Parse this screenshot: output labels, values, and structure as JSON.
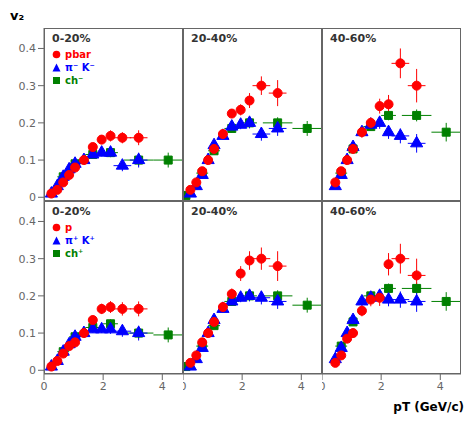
{
  "chart_data": [
    {
      "type": "scatter",
      "title": "0-20%",
      "xlim": [
        0,
        4.7
      ],
      "ylim": [
        -0.01,
        0.455
      ],
      "xticks": [
        0,
        2,
        4
      ],
      "yticks": [
        0,
        0.1,
        0.2,
        0.3,
        0.4
      ],
      "tick_labels": "y",
      "legend": "upper left",
      "y_label": "v₂",
      "series": [
        {
          "name": "pbar",
          "color": "red",
          "marker": "circle",
          "x": [
            0.25,
            0.45,
            0.65,
            0.85,
            1.05,
            1.35,
            1.65,
            1.95,
            2.25,
            2.65,
            3.2
          ],
          "values": [
            0.01,
            0.02,
            0.04,
            0.06,
            0.08,
            0.1,
            0.135,
            0.155,
            0.165,
            0.16,
            0.16
          ],
          "x_err": [
            0.05,
            0.05,
            0.05,
            0.05,
            0.05,
            0.1,
            0.1,
            0.1,
            0.1,
            0.3,
            0.3
          ],
          "y_err": [
            0.005,
            0.005,
            0.007,
            0.007,
            0.008,
            0.008,
            0.01,
            0.01,
            0.015,
            0.015,
            0.02
          ]
        },
        {
          "name": "π⁻ K⁻",
          "color": "blue",
          "marker": "triangle",
          "x": [
            0.25,
            0.45,
            0.65,
            0.85,
            1.05,
            1.35,
            1.65,
            1.95,
            2.25,
            2.65,
            3.2
          ],
          "values": [
            0.01,
            0.03,
            0.055,
            0.075,
            0.09,
            0.1,
            0.115,
            0.12,
            0.12,
            0.085,
            0.1
          ],
          "x_err": [
            0.05,
            0.05,
            0.05,
            0.05,
            0.05,
            0.1,
            0.1,
            0.1,
            0.1,
            0.3,
            0.3
          ],
          "y_err": [
            0.004,
            0.004,
            0.005,
            0.006,
            0.007,
            0.008,
            0.009,
            0.01,
            0.012,
            0.015,
            0.02
          ]
        },
        {
          "name": "ch⁻",
          "color": "green",
          "marker": "square",
          "x": [
            0.65,
            1.05,
            1.65,
            2.25,
            3.2,
            4.2
          ],
          "values": [
            0.055,
            0.09,
            0.115,
            0.12,
            0.1,
            0.1
          ],
          "x_err": [
            0.2,
            0.2,
            0.25,
            0.25,
            0.5,
            0.5
          ],
          "y_err": [
            0.005,
            0.007,
            0.009,
            0.012,
            0.015,
            0.02
          ]
        }
      ]
    },
    {
      "type": "scatter",
      "title": "20-40%",
      "xlim": [
        0,
        4.7
      ],
      "ylim": [
        -0.01,
        0.455
      ],
      "xticks": [
        0,
        2,
        4
      ],
      "yticks": [
        0,
        0.1,
        0.2,
        0.3,
        0.4
      ],
      "tick_labels": false,
      "series": [
        {
          "color": "red",
          "marker": "circle",
          "x": [
            0.25,
            0.45,
            0.65,
            0.85,
            1.05,
            1.35,
            1.65,
            1.95,
            2.25,
            2.65,
            3.2
          ],
          "values": [
            0.02,
            0.04,
            0.07,
            0.1,
            0.13,
            0.17,
            0.225,
            0.235,
            0.26,
            0.3,
            0.28
          ],
          "x_err": [
            0.05,
            0.05,
            0.05,
            0.05,
            0.05,
            0.1,
            0.1,
            0.1,
            0.1,
            0.3,
            0.3
          ],
          "y_err": [
            0.005,
            0.005,
            0.007,
            0.007,
            0.008,
            0.01,
            0.012,
            0.015,
            0.02,
            0.025,
            0.035
          ]
        },
        {
          "color": "blue",
          "marker": "triangle",
          "x": [
            0.25,
            0.45,
            0.65,
            0.85,
            1.05,
            1.35,
            1.65,
            1.95,
            2.25,
            2.65,
            3.2
          ],
          "values": [
            0.01,
            0.03,
            0.06,
            0.1,
            0.14,
            0.165,
            0.19,
            0.195,
            0.2,
            0.17,
            0.185
          ],
          "x_err": [
            0.05,
            0.05,
            0.05,
            0.05,
            0.05,
            0.1,
            0.1,
            0.1,
            0.1,
            0.3,
            0.3
          ],
          "y_err": [
            0.004,
            0.004,
            0.006,
            0.007,
            0.008,
            0.009,
            0.01,
            0.012,
            0.015,
            0.018,
            0.02
          ]
        },
        {
          "color": "green",
          "marker": "square",
          "x": [
            0.1,
            0.65,
            1.05,
            1.65,
            2.25,
            3.2,
            4.2
          ],
          "values": [
            0.005,
            0.065,
            0.125,
            0.185,
            0.2,
            0.2,
            0.185
          ],
          "x_err": [
            0.05,
            0.2,
            0.2,
            0.25,
            0.25,
            0.5,
            0.5
          ],
          "y_err": [
            0.005,
            0.006,
            0.008,
            0.01,
            0.012,
            0.015,
            0.02
          ]
        }
      ]
    },
    {
      "type": "scatter",
      "title": "40-60%",
      "xlim": [
        0,
        4.7
      ],
      "ylim": [
        -0.01,
        0.455
      ],
      "xticks": [
        0,
        2,
        4
      ],
      "yticks": [
        0,
        0.1,
        0.2,
        0.3,
        0.4
      ],
      "tick_labels": false,
      "series": [
        {
          "color": "red",
          "marker": "circle",
          "x": [
            0.45,
            0.65,
            0.85,
            1.05,
            1.35,
            1.65,
            1.95,
            2.25,
            2.65,
            3.2
          ],
          "values": [
            0.04,
            0.07,
            0.1,
            0.13,
            0.175,
            0.2,
            0.245,
            0.25,
            0.36,
            0.3
          ],
          "x_err": [
            0.05,
            0.05,
            0.05,
            0.05,
            0.1,
            0.1,
            0.1,
            0.15,
            0.3,
            0.3
          ],
          "y_err": [
            0.007,
            0.008,
            0.01,
            0.01,
            0.015,
            0.015,
            0.02,
            0.025,
            0.04,
            0.045
          ]
        },
        {
          "color": "blue",
          "marker": "triangle",
          "x": [
            0.45,
            0.65,
            0.85,
            1.05,
            1.35,
            1.65,
            1.95,
            2.25,
            2.65,
            3.2
          ],
          "values": [
            0.03,
            0.06,
            0.1,
            0.135,
            0.175,
            0.195,
            0.2,
            0.175,
            0.165,
            0.145
          ],
          "x_err": [
            0.05,
            0.05,
            0.05,
            0.05,
            0.1,
            0.1,
            0.1,
            0.15,
            0.3,
            0.3
          ],
          "y_err": [
            0.006,
            0.007,
            0.009,
            0.01,
            0.012,
            0.014,
            0.016,
            0.018,
            0.02,
            0.025
          ]
        },
        {
          "color": "green",
          "marker": "square",
          "x": [
            0.65,
            1.05,
            1.65,
            2.25,
            3.2,
            4.2
          ],
          "values": [
            0.065,
            0.13,
            0.19,
            0.22,
            0.22,
            0.175
          ],
          "x_err": [
            0.2,
            0.2,
            0.25,
            0.25,
            0.5,
            0.5
          ],
          "y_err": [
            0.006,
            0.008,
            0.01,
            0.013,
            0.016,
            0.025
          ]
        }
      ]
    },
    {
      "type": "scatter",
      "title": "0-20%",
      "xlim": [
        0,
        4.7
      ],
      "ylim": [
        -0.01,
        0.455
      ],
      "xticks": [
        0,
        2,
        4
      ],
      "yticks": [
        0,
        0.1,
        0.2,
        0.3,
        0.4
      ],
      "tick_labels": true,
      "legend": "upper left",
      "series": [
        {
          "name": "p",
          "color": "red",
          "marker": "circle",
          "x": [
            0.25,
            0.45,
            0.65,
            0.85,
            1.05,
            1.35,
            1.65,
            1.95,
            2.25,
            2.65,
            3.2
          ],
          "values": [
            0.01,
            0.025,
            0.045,
            0.065,
            0.075,
            0.1,
            0.135,
            0.165,
            0.17,
            0.165,
            0.165
          ],
          "x_err": [
            0.05,
            0.05,
            0.05,
            0.05,
            0.05,
            0.1,
            0.1,
            0.1,
            0.1,
            0.3,
            0.3
          ],
          "y_err": [
            0.005,
            0.005,
            0.007,
            0.007,
            0.008,
            0.01,
            0.012,
            0.014,
            0.016,
            0.018,
            0.02
          ]
        },
        {
          "name": "π⁺ K⁺",
          "color": "blue",
          "marker": "triangle",
          "x": [
            0.25,
            0.45,
            0.65,
            0.85,
            1.05,
            1.35,
            1.65,
            1.95,
            2.25,
            2.65,
            3.2
          ],
          "values": [
            0.01,
            0.025,
            0.05,
            0.07,
            0.09,
            0.1,
            0.11,
            0.11,
            0.11,
            0.105,
            0.1
          ],
          "x_err": [
            0.05,
            0.05,
            0.05,
            0.05,
            0.05,
            0.1,
            0.1,
            0.1,
            0.1,
            0.3,
            0.3
          ],
          "y_err": [
            0.004,
            0.004,
            0.005,
            0.006,
            0.007,
            0.008,
            0.009,
            0.01,
            0.012,
            0.015,
            0.02
          ]
        },
        {
          "name": "ch⁺",
          "color": "green",
          "marker": "square",
          "x": [
            0.65,
            1.05,
            1.65,
            2.25,
            3.2,
            4.2
          ],
          "values": [
            0.05,
            0.09,
            0.115,
            0.125,
            0.1,
            0.095
          ],
          "x_err": [
            0.2,
            0.2,
            0.25,
            0.25,
            0.5,
            0.5
          ],
          "y_err": [
            0.005,
            0.007,
            0.009,
            0.012,
            0.015,
            0.02
          ]
        }
      ]
    },
    {
      "type": "scatter",
      "title": "20-40%",
      "xlim": [
        0,
        4.7
      ],
      "ylim": [
        -0.01,
        0.455
      ],
      "xticks": [
        0,
        2,
        4
      ],
      "yticks": [
        0,
        0.1,
        0.2,
        0.3,
        0.4
      ],
      "tick_labels": "x",
      "series": [
        {
          "color": "red",
          "marker": "circle",
          "x": [
            0.25,
            0.45,
            0.65,
            0.85,
            1.05,
            1.35,
            1.65,
            1.95,
            2.25,
            2.65,
            3.2
          ],
          "values": [
            0.02,
            0.04,
            0.075,
            0.1,
            0.13,
            0.17,
            0.205,
            0.26,
            0.295,
            0.3,
            0.28
          ],
          "x_err": [
            0.05,
            0.05,
            0.05,
            0.05,
            0.05,
            0.1,
            0.1,
            0.1,
            0.1,
            0.3,
            0.3
          ],
          "y_err": [
            0.005,
            0.005,
            0.007,
            0.007,
            0.01,
            0.012,
            0.015,
            0.02,
            0.025,
            0.03,
            0.04
          ]
        },
        {
          "color": "blue",
          "marker": "triangle",
          "x": [
            0.25,
            0.45,
            0.65,
            0.85,
            1.05,
            1.35,
            1.65,
            1.95,
            2.25,
            2.65,
            3.2
          ],
          "values": [
            0.01,
            0.03,
            0.06,
            0.1,
            0.135,
            0.165,
            0.185,
            0.195,
            0.2,
            0.195,
            0.185
          ],
          "x_err": [
            0.05,
            0.05,
            0.05,
            0.05,
            0.05,
            0.1,
            0.1,
            0.1,
            0.1,
            0.3,
            0.3
          ],
          "y_err": [
            0.004,
            0.004,
            0.006,
            0.007,
            0.008,
            0.009,
            0.01,
            0.012,
            0.015,
            0.018,
            0.02
          ]
        },
        {
          "color": "green",
          "marker": "square",
          "x": [
            0.1,
            0.65,
            1.05,
            1.65,
            2.25,
            3.2,
            4.2
          ],
          "values": [
            0.01,
            0.065,
            0.12,
            0.185,
            0.2,
            0.2,
            0.175
          ],
          "x_err": [
            0.05,
            0.2,
            0.2,
            0.25,
            0.25,
            0.5,
            0.5
          ],
          "y_err": [
            0.005,
            0.006,
            0.008,
            0.01,
            0.012,
            0.015,
            0.02
          ]
        }
      ]
    },
    {
      "type": "scatter",
      "title": "40-60%",
      "xlim": [
        0,
        4.7
      ],
      "ylim": [
        -0.01,
        0.455
      ],
      "xticks": [
        0,
        2,
        4
      ],
      "yticks": [
        0,
        0.1,
        0.2,
        0.3,
        0.4
      ],
      "tick_labels": "x",
      "x_label": "pT (GeV/c)",
      "series": [
        {
          "color": "red",
          "marker": "circle",
          "x": [
            0.45,
            0.65,
            0.85,
            1.05,
            1.35,
            1.65,
            1.95,
            2.25,
            2.65,
            3.2
          ],
          "values": [
            0.02,
            0.04,
            0.085,
            0.1,
            0.16,
            0.19,
            0.195,
            0.285,
            0.3,
            0.255
          ],
          "x_err": [
            0.05,
            0.05,
            0.05,
            0.05,
            0.1,
            0.1,
            0.1,
            0.15,
            0.3,
            0.3
          ],
          "y_err": [
            0.007,
            0.008,
            0.01,
            0.012,
            0.015,
            0.018,
            0.022,
            0.03,
            0.04,
            0.045
          ]
        },
        {
          "color": "blue",
          "marker": "triangle",
          "x": [
            0.45,
            0.65,
            0.85,
            1.05,
            1.35,
            1.65,
            1.95,
            2.25,
            2.65,
            3.2
          ],
          "values": [
            0.03,
            0.06,
            0.1,
            0.135,
            0.185,
            0.195,
            0.2,
            0.19,
            0.19,
            0.185
          ],
          "x_err": [
            0.05,
            0.05,
            0.05,
            0.05,
            0.1,
            0.1,
            0.1,
            0.15,
            0.3,
            0.3
          ],
          "y_err": [
            0.006,
            0.007,
            0.009,
            0.01,
            0.012,
            0.014,
            0.016,
            0.018,
            0.022,
            0.028
          ]
        },
        {
          "color": "green",
          "marker": "square",
          "x": [
            0.65,
            1.05,
            1.65,
            2.25,
            3.2,
            4.2
          ],
          "values": [
            0.065,
            0.13,
            0.2,
            0.22,
            0.22,
            0.185
          ],
          "x_err": [
            0.2,
            0.2,
            0.25,
            0.25,
            0.5,
            0.5
          ],
          "y_err": [
            0.006,
            0.008,
            0.01,
            0.013,
            0.016,
            0.025
          ]
        }
      ]
    }
  ]
}
